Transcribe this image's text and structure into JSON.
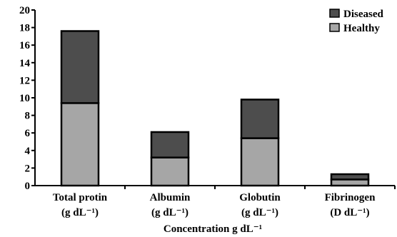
{
  "chart_data": {
    "type": "bar",
    "stacked": true,
    "title": "",
    "xlabel": "Concentration g dL⁻¹",
    "ylabel": "",
    "ylim": [
      0,
      20
    ],
    "yticks": [
      0,
      2,
      4,
      6,
      8,
      10,
      12,
      14,
      16,
      18,
      20
    ],
    "categories": [
      {
        "name": "Total protin",
        "unit": "(g dL⁻¹)"
      },
      {
        "name": "Albumin",
        "unit": "(g dL⁻¹)"
      },
      {
        "name": "Globutin",
        "unit": "(g dL⁻¹)"
      },
      {
        "name": "Fibrinogen",
        "unit": "(D dL⁻¹)"
      }
    ],
    "series": [
      {
        "name": "Healthy",
        "color": "#a6a6a6",
        "values": [
          9.4,
          3.2,
          5.4,
          0.7
        ]
      },
      {
        "name": "Diseased",
        "color": "#4d4d4d",
        "values": [
          8.2,
          2.9,
          4.4,
          0.6
        ]
      }
    ],
    "legend": {
      "position": "top-right",
      "order": [
        "Diseased",
        "Healthy"
      ]
    },
    "grid": false
  }
}
